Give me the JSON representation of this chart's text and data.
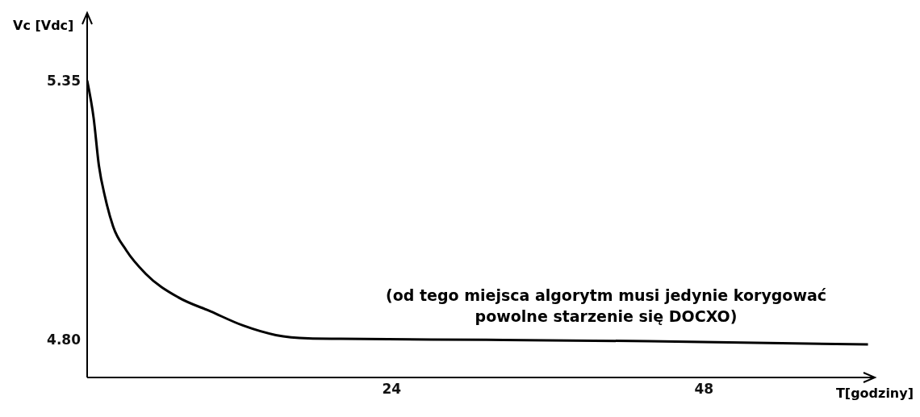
{
  "chart_data": {
    "type": "line",
    "xlabel": "T[godziny]",
    "ylabel": "Vc [Vdc]",
    "annotations": [
      "(od tego miejsca algorytm musi jedynie korygować\npowolne starzenie się DOCXO)"
    ],
    "x": [
      0.6,
      1.1,
      1.5,
      2.0,
      2.6,
      3.6,
      5.1,
      7.6,
      10.1,
      12.6,
      15.1,
      17.6,
      20.1,
      31.3,
      43.8,
      60.6
    ],
    "series": [
      {
        "color": "#000000",
        "values": [
          5.35,
          5.27,
          5.17,
          5.1,
          5.04,
          4.99,
          4.94,
          4.89,
          4.86,
          4.83,
          4.81,
          4.803,
          4.802,
          4.8,
          4.797,
          4.79
        ]
      }
    ],
    "xlim": [
      0.6,
      61
    ],
    "ylim": [
      4.72,
      5.49
    ],
    "xticks": [
      24,
      48
    ],
    "yticks": [
      5.35,
      {
        "value": 4.8,
        "label": "4.80"
      }
    ],
    "grid": false,
    "legend": false,
    "marker": "none",
    "line_style": "solid"
  }
}
